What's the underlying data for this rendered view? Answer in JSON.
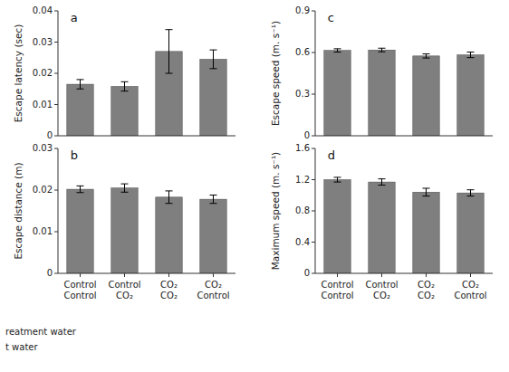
{
  "chart_data": [
    {
      "type": "bar",
      "title": "a",
      "ylabel": "Escape latency (sec)",
      "categories": [
        null,
        null,
        null,
        null
      ],
      "values": [
        0.0165,
        0.0158,
        0.027,
        0.0245
      ],
      "errors": [
        0.0015,
        0.0015,
        0.007,
        0.003
      ],
      "color": "#7f7f7f",
      "ylim": [
        0,
        0.04
      ],
      "yticks": [
        0,
        0.01,
        0.02,
        0.03,
        0.04
      ],
      "grid": false,
      "tick_labels": "y"
    },
    {
      "type": "bar",
      "title": "b",
      "ylabel": "Escape distance (m)",
      "categories": [
        "Control\nControl",
        "Control\nCO₂",
        "CO₂\nCO₂",
        "CO₂\nControl"
      ],
      "values": [
        0.0202,
        0.0205,
        0.0183,
        0.0178
      ],
      "errors": [
        0.0008,
        0.001,
        0.0015,
        0.001
      ],
      "color": "#7f7f7f",
      "ylim": [
        0,
        0.03
      ],
      "yticks": [
        0,
        0.01,
        0.02,
        0.03
      ],
      "grid": false,
      "annotations": [
        "reatment water",
        "t water"
      ]
    },
    {
      "type": "bar",
      "title": "c",
      "ylabel": "Escape speed (m. s⁻¹)",
      "categories": [
        null,
        null,
        null,
        null
      ],
      "values": [
        0.615,
        0.618,
        0.575,
        0.583
      ],
      "errors": [
        0.012,
        0.013,
        0.015,
        0.02
      ],
      "color": "#7f7f7f",
      "ylim": [
        0,
        0.9
      ],
      "yticks": [
        0,
        0.3,
        0.6,
        0.9
      ],
      "grid": false,
      "tick_labels": "y"
    },
    {
      "type": "bar",
      "title": "d",
      "ylabel": "Maximum speed (m. s⁻¹)",
      "categories": [
        "Control\nControl",
        "Control\nCO₂",
        "CO₂\nCO₂",
        "CO₂\nControl"
      ],
      "values": [
        1.2,
        1.17,
        1.04,
        1.03
      ],
      "errors": [
        0.03,
        0.04,
        0.05,
        0.04
      ],
      "color": "#7f7f7f",
      "ylim": [
        0,
        1.6
      ],
      "yticks": [
        0,
        0.4,
        0.8,
        1.2,
        1.6
      ],
      "grid": false
    }
  ]
}
